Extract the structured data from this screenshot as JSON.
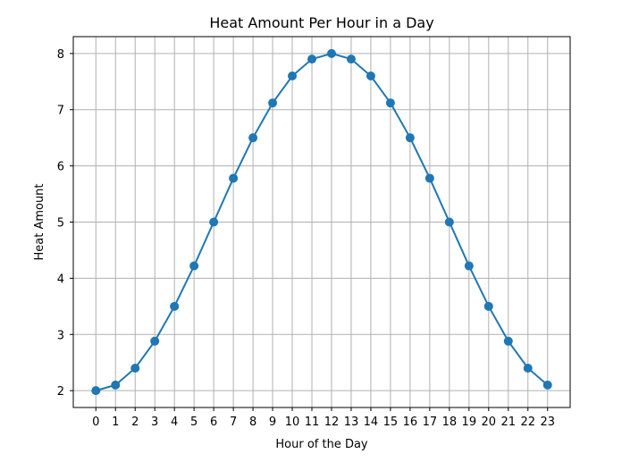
{
  "chart_data": {
    "type": "line",
    "title": "Heat Amount Per Hour in a Day",
    "xlabel": "Hour of the Day",
    "ylabel": "Heat Amount",
    "x": [
      0,
      1,
      2,
      3,
      4,
      5,
      6,
      7,
      8,
      9,
      10,
      11,
      12,
      13,
      14,
      15,
      16,
      17,
      18,
      19,
      20,
      21,
      22,
      23
    ],
    "series": [
      {
        "values": [
          2.0,
          2.1,
          2.4,
          2.88,
          3.5,
          4.22,
          5.0,
          5.78,
          6.5,
          7.12,
          7.6,
          7.9,
          8.0,
          7.9,
          7.6,
          7.12,
          6.5,
          5.78,
          5.0,
          4.22,
          3.5,
          2.88,
          2.4,
          2.1
        ],
        "color": "#1f77b4",
        "marker": "circle"
      }
    ],
    "xticks": [
      "0",
      "1",
      "2",
      "3",
      "4",
      "5",
      "6",
      "7",
      "8",
      "9",
      "10",
      "11",
      "12",
      "13",
      "14",
      "15",
      "16",
      "17",
      "18",
      "19",
      "20",
      "21",
      "22",
      "23"
    ],
    "yticks": [
      "2",
      "3",
      "4",
      "5",
      "6",
      "7",
      "8"
    ],
    "xlim": [
      -1.15,
      24.15
    ],
    "ylim": [
      1.7,
      8.3
    ],
    "grid": true
  }
}
